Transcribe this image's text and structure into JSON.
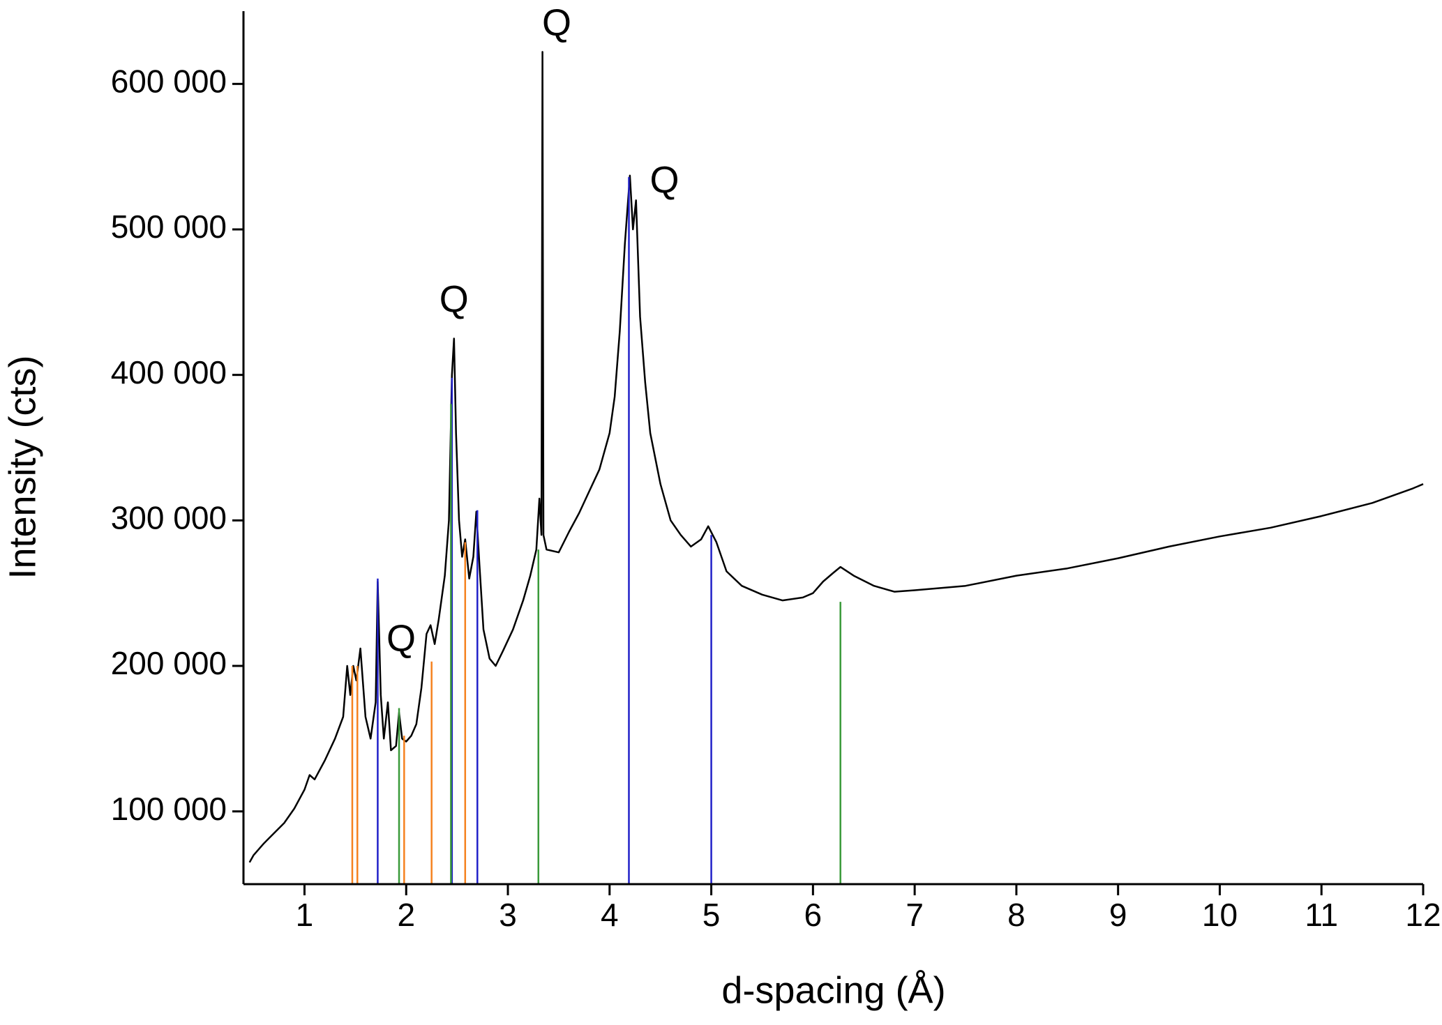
{
  "chart_data": {
    "type": "line",
    "xlabel": "d-spacing (Å)",
    "ylabel": "Intensity (cts)",
    "xlim": [
      0.4,
      12
    ],
    "ylim": [
      50000,
      650000
    ],
    "xticks": [
      1,
      2,
      3,
      4,
      5,
      6,
      7,
      8,
      9,
      10,
      11,
      12
    ],
    "yticks": [
      {
        "value": 100000,
        "label": "100 000"
      },
      {
        "value": 200000,
        "label": "200 000"
      },
      {
        "value": 300000,
        "label": "300 000"
      },
      {
        "value": 400000,
        "label": "400 000"
      },
      {
        "value": 500000,
        "label": "500 000"
      },
      {
        "value": 600000,
        "label": "600 000"
      }
    ],
    "series": [
      {
        "type": "line",
        "color": "#000000",
        "x": [
          0.46,
          0.5,
          0.6,
          0.7,
          0.8,
          0.9,
          1.0,
          1.05,
          1.1,
          1.2,
          1.3,
          1.38,
          1.42,
          1.45,
          1.48,
          1.51,
          1.55,
          1.6,
          1.65,
          1.7,
          1.72,
          1.75,
          1.78,
          1.82,
          1.85,
          1.9,
          1.93,
          1.96,
          2.0,
          2.05,
          2.1,
          2.15,
          2.2,
          2.24,
          2.28,
          2.32,
          2.38,
          2.42,
          2.45,
          2.47,
          2.49,
          2.52,
          2.55,
          2.58,
          2.62,
          2.66,
          2.69,
          2.72,
          2.76,
          2.82,
          2.88,
          2.95,
          3.05,
          3.15,
          3.22,
          3.28,
          3.31,
          3.33,
          3.34,
          3.35,
          3.38,
          3.5,
          3.6,
          3.7,
          3.8,
          3.9,
          4.0,
          4.05,
          4.1,
          4.15,
          4.2,
          4.23,
          4.26,
          4.3,
          4.35,
          4.4,
          4.5,
          4.6,
          4.7,
          4.8,
          4.9,
          4.97,
          5.05,
          5.15,
          5.3,
          5.5,
          5.7,
          5.9,
          6.0,
          6.1,
          6.2,
          6.27,
          6.4,
          6.6,
          6.8,
          7.0,
          7.5,
          8.0,
          8.5,
          9.0,
          9.5,
          10.0,
          10.5,
          11.0,
          11.5,
          11.9,
          12.0
        ],
        "values": [
          65000,
          70000,
          78000,
          85000,
          92000,
          102000,
          115000,
          125000,
          122000,
          135000,
          150000,
          165000,
          200000,
          180000,
          200000,
          190000,
          212000,
          165000,
          150000,
          175000,
          258000,
          180000,
          150000,
          175000,
          142000,
          145000,
          168000,
          150000,
          148000,
          152000,
          160000,
          185000,
          222000,
          228000,
          215000,
          232000,
          262000,
          300000,
          400000,
          425000,
          360000,
          300000,
          275000,
          287000,
          260000,
          275000,
          306000,
          270000,
          225000,
          205000,
          200000,
          210000,
          225000,
          245000,
          262000,
          280000,
          315000,
          290000,
          622000,
          290000,
          280000,
          278000,
          292000,
          305000,
          320000,
          335000,
          360000,
          385000,
          430000,
          490000,
          537000,
          500000,
          520000,
          440000,
          395000,
          360000,
          325000,
          300000,
          290000,
          282000,
          287000,
          296000,
          285000,
          265000,
          255000,
          249000,
          245000,
          247000,
          250000,
          258000,
          264000,
          268000,
          262000,
          255000,
          251000,
          252000,
          255000,
          262000,
          267000,
          274000,
          282000,
          289000,
          295000,
          303000,
          312000,
          322000,
          325000
        ]
      },
      {
        "type": "stick",
        "color": "#f5821f",
        "x": [
          1.47,
          1.52,
          1.98,
          2.25,
          2.58
        ],
        "values": [
          200000,
          200000,
          152000,
          203000,
          285000
        ]
      },
      {
        "type": "stick",
        "color": "#2020c8",
        "x": [
          1.72,
          2.45,
          2.7,
          4.19,
          5.0
        ],
        "values": [
          260000,
          398000,
          307000,
          536000,
          290000
        ]
      },
      {
        "type": "stick",
        "color": "#3a9a3a",
        "x": [
          1.93,
          2.44,
          3.3,
          6.27
        ],
        "values": [
          171000,
          380000,
          280000,
          244000
        ]
      }
    ],
    "annotations": [
      {
        "text": "Q",
        "x": 1.95,
        "y": 217000
      },
      {
        "text": "Q",
        "x": 2.47,
        "y": 450000
      },
      {
        "text": "Q",
        "x": 3.48,
        "y": 640000
      },
      {
        "text": "Q",
        "x": 4.54,
        "y": 532000
      }
    ]
  }
}
